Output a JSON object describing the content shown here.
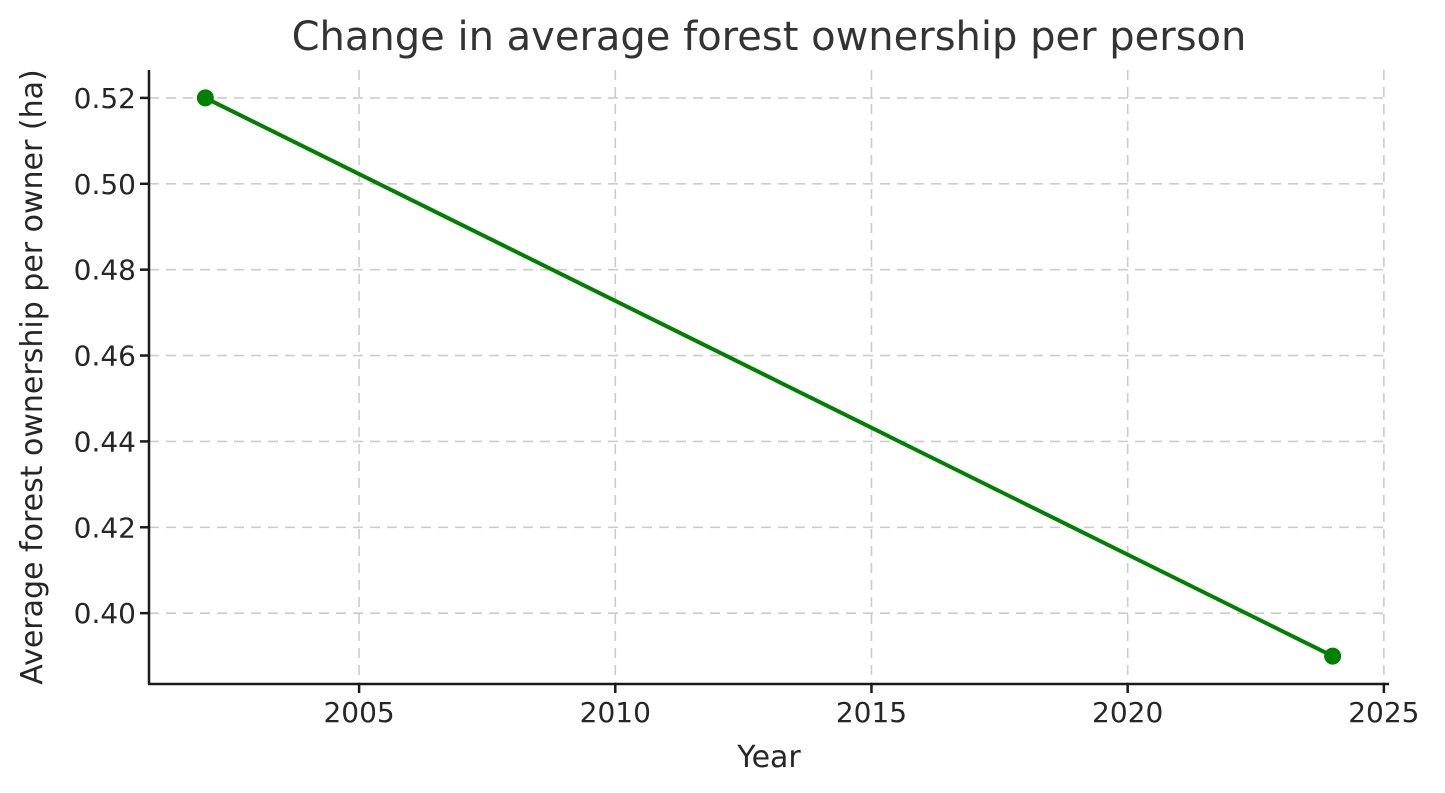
{
  "figure": {
    "background": "#ffffff",
    "text_color": "#262626",
    "title_color": "#333333",
    "spine_color": "#1a1a1a"
  },
  "chart_data": {
    "type": "line",
    "title": "Change in average forest ownership per person",
    "xlabel": "Year",
    "ylabel": "Average forest ownership per owner (ha)",
    "series": [
      {
        "name": "Average forest ownership per owner (ha)",
        "x": [
          2002,
          2024
        ],
        "y": [
          0.52,
          0.39
        ],
        "color": "#008000",
        "line_width": 4,
        "marker": "circle",
        "marker_radius": 8.5
      }
    ],
    "xticks": [
      2005,
      2010,
      2015,
      2020,
      2025
    ],
    "xtick_labels": [
      "2005",
      "2010",
      "2015",
      "2020",
      "2025"
    ],
    "yticks": [
      0.4,
      0.42,
      0.44,
      0.46,
      0.48,
      0.5,
      0.52
    ],
    "ytick_labels": [
      "0.40",
      "0.42",
      "0.44",
      "0.46",
      "0.48",
      "0.50",
      "0.52"
    ],
    "xlim": [
      2000.9,
      2025.1
    ],
    "ylim": [
      0.3835,
      0.5265
    ],
    "grid": true,
    "grid_style": "dashed",
    "grid_color": "#cccccc",
    "legend": "none",
    "spines": [
      "left",
      "bottom"
    ]
  }
}
